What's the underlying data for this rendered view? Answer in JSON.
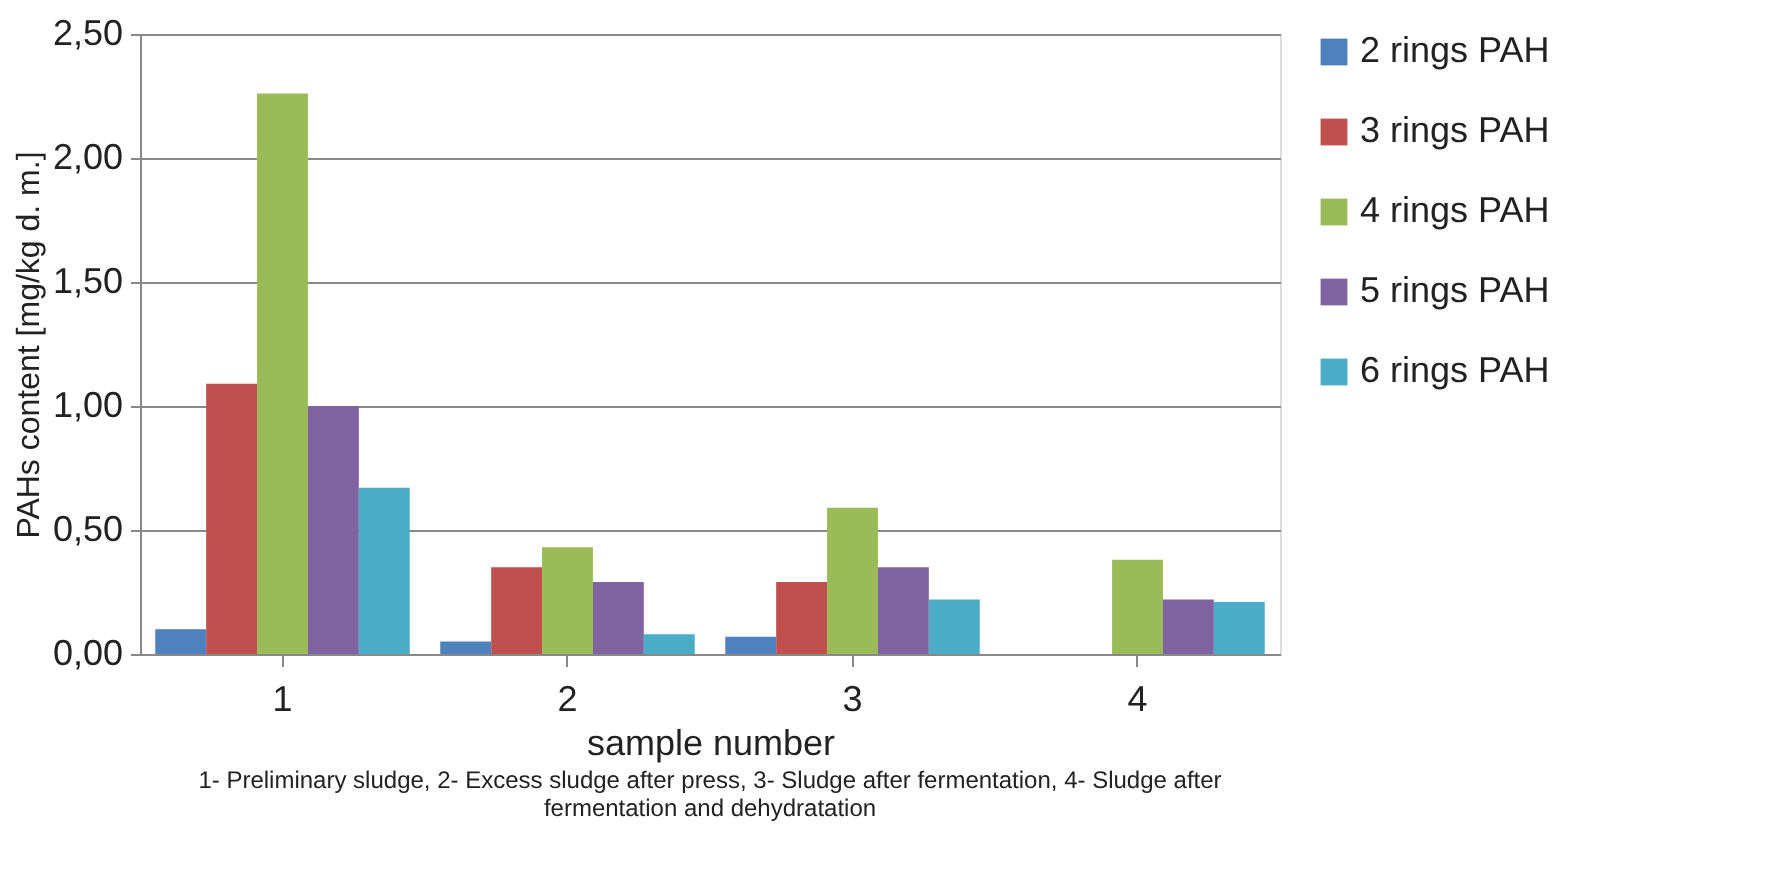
{
  "chart_data": {
    "type": "bar",
    "xlabel": "sample number",
    "ylabel": "PAHs content [mg/kg d. m.]",
    "categories": [
      "1",
      "2",
      "3",
      "4"
    ],
    "series": [
      {
        "name": "2 rings PAH",
        "color": "#4f81bd",
        "values": [
          0.1,
          0.05,
          0.07,
          null
        ]
      },
      {
        "name": "3 rings PAH",
        "color": "#c0504d",
        "values": [
          1.09,
          0.35,
          0.29,
          null
        ]
      },
      {
        "name": "4 rings PAH",
        "color": "#9bbb59",
        "values": [
          2.26,
          0.43,
          0.59,
          0.38
        ]
      },
      {
        "name": "5 rings PAH",
        "color": "#8064a2",
        "values": [
          1.0,
          0.29,
          0.35,
          0.22
        ]
      },
      {
        "name": "6 rings PAH",
        "color": "#4bacc6",
        "values": [
          0.67,
          0.08,
          0.22,
          0.21
        ]
      }
    ],
    "ylim": [
      0,
      2.5
    ],
    "yticks": [
      {
        "value": 0,
        "label": "0,00"
      },
      {
        "value": 0.5,
        "label": "0,50"
      },
      {
        "value": 1,
        "label": "1,00"
      },
      {
        "value": 1.5,
        "label": "1,50"
      },
      {
        "value": 2,
        "label": "2,00"
      },
      {
        "value": 2.5,
        "label": "2,50"
      }
    ],
    "grid": "y",
    "legend": "right",
    "annotations": [
      "1- Preliminary sludge, 2- Excess sludge after press, 3- Sludge after fermentation, 4- Sludge after fermentation and dehydratation"
    ]
  }
}
